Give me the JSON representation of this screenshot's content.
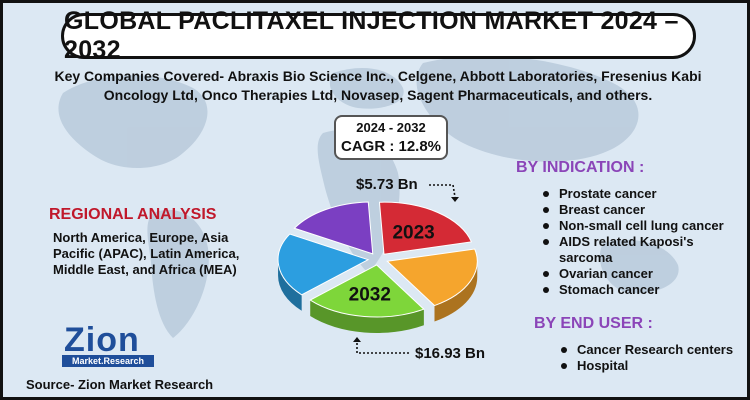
{
  "title": "GLOBAL PACLITAXEL INJECTION MARKET 2024 – 2032",
  "companies": "Key Companies Covered- Abraxis Bio Science Inc., Celgene, Abbott Laboratories, Fresenius Kabi Oncology Ltd, Onco Therapies Ltd, Novasep, Sagent Pharmaceuticals, and others.",
  "cagr": {
    "years": "2024 - 2032",
    "value": "CAGR : 12.8%"
  },
  "regional": {
    "heading": "REGIONAL ANALYSIS",
    "body": "North America, Europe, Asia Pacific (APAC), Latin America, Middle East, and Africa (MEA)"
  },
  "indication": {
    "heading": "BY INDICATION :",
    "items": [
      "Prostate cancer",
      "Breast cancer",
      "Non-small cell lung cancer",
      "AIDS related Kaposi's sarcoma",
      "Ovarian cancer",
      "Stomach cancer"
    ]
  },
  "end_user": {
    "heading": "BY END USER :",
    "items": [
      "Cancer Research centers",
      "Hospital"
    ]
  },
  "logo": {
    "name": "Zion",
    "sub": "Market.Research"
  },
  "source": "Source- Zion Market Research",
  "chart_data": {
    "type": "pie",
    "title": "",
    "values": [
      22,
      20,
      22,
      20,
      16
    ],
    "colors": [
      "#d42a35",
      "#f5a52d",
      "#7ed63a",
      "#2c9ee0",
      "#7b3fc2"
    ],
    "slice_labels": [
      "2023",
      "",
      "2032",
      "",
      ""
    ],
    "annotations": [
      {
        "year": "2023",
        "value": "$5.73 Bn"
      },
      {
        "year": "2032",
        "value": "$16.93 Bn"
      }
    ]
  }
}
